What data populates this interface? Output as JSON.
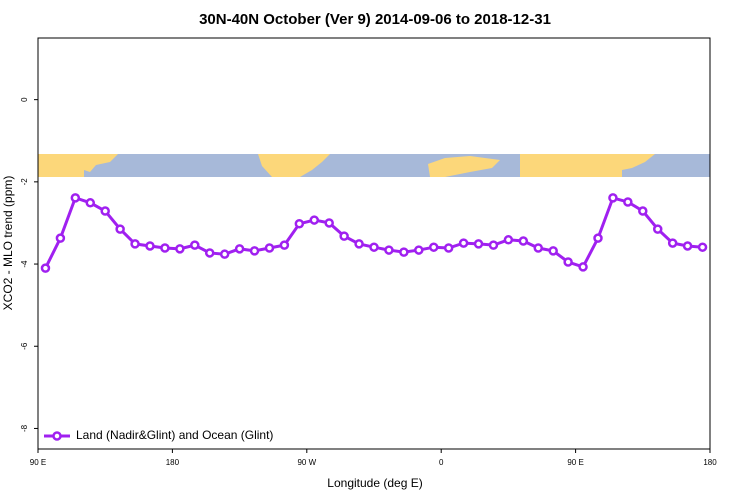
{
  "chart_data": {
    "type": "line",
    "title": "30N-40N October (Ver 9)   2014-09-06 to 2018-12-31",
    "x_label": "Longitude (deg E)",
    "y_label": "XCO2 - MLO trend (ppm)",
    "x": [
      95,
      105,
      115,
      125,
      135,
      145,
      155,
      165,
      175,
      185,
      195,
      205,
      215,
      225,
      235,
      245,
      255,
      265,
      275,
      285,
      295,
      305,
      315,
      325,
      335,
      345,
      355,
      365,
      375,
      385,
      395,
      405,
      415,
      425,
      435,
      445,
      455,
      465,
      475,
      485,
      495,
      505,
      515,
      525,
      535
    ],
    "series": [
      {
        "name": "Land (Nadir&Glint) and Ocean (Glint)",
        "color": "#a020f0",
        "values": [
          -4.1,
          -3.37,
          -2.39,
          -2.51,
          -2.71,
          -3.15,
          -3.51,
          -3.56,
          -3.61,
          -3.63,
          -3.54,
          -3.73,
          -3.76,
          -3.63,
          -3.68,
          -3.61,
          -3.54,
          -3.02,
          -2.93,
          -3.0,
          -3.32,
          -3.51,
          -3.59,
          -3.66,
          -3.71,
          -3.66,
          -3.59,
          -3.61,
          -3.49,
          -3.51,
          -3.54,
          -3.41,
          -3.44,
          -3.61,
          -3.68,
          -3.95,
          -4.07,
          -3.37,
          -2.39,
          -2.49,
          -2.71,
          -3.15,
          -3.49,
          -3.56,
          -3.59
        ]
      }
    ],
    "xlim": [
      90,
      540
    ],
    "xticks": [
      {
        "value": 90,
        "label": "90 E"
      },
      180,
      {
        "value": 270,
        "label": "90 W"
      },
      {
        "value": 360,
        "label": "0"
      },
      {
        "value": 450,
        "label": "90 E"
      },
      {
        "value": 540,
        "label": "180"
      }
    ],
    "ylim": [
      -8.5,
      1.5
    ],
    "yticks": [
      0,
      -2,
      -4,
      -6,
      -8
    ],
    "legend": "lower left"
  }
}
